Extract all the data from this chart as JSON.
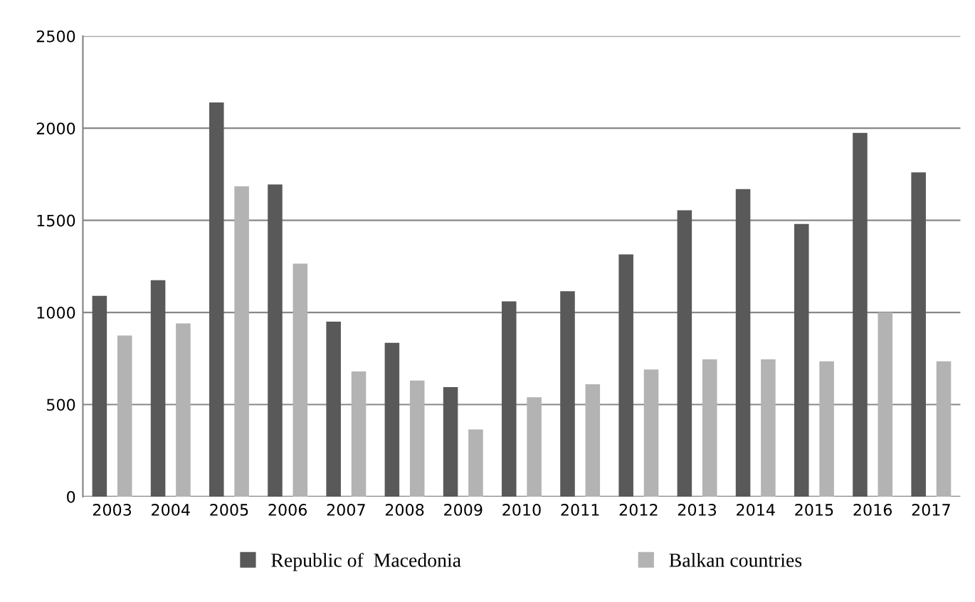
{
  "chart_data": {
    "type": "bar",
    "categories": [
      "2003",
      "2004",
      "2005",
      "2006",
      "2007",
      "2008",
      "2009",
      "2010",
      "2011",
      "2012",
      "2013",
      "2014",
      "2015",
      "2016",
      "2017"
    ],
    "series": [
      {
        "name": "Republic of  Macedonia",
        "color": "#595959",
        "values": [
          1090,
          1175,
          2140,
          1695,
          950,
          835,
          595,
          1060,
          1115,
          1315,
          1555,
          1670,
          1480,
          1975,
          1760
        ]
      },
      {
        "name": "Balkan countries",
        "color": "#b3b3b3",
        "values": [
          875,
          940,
          1685,
          1265,
          680,
          630,
          365,
          540,
          610,
          690,
          745,
          745,
          735,
          1000,
          735
        ]
      }
    ],
    "ylim": [
      0,
      2500
    ],
    "yticks": [
      0,
      500,
      1000,
      1500,
      2000,
      2500
    ],
    "grid": "y",
    "legend": "bottom"
  }
}
